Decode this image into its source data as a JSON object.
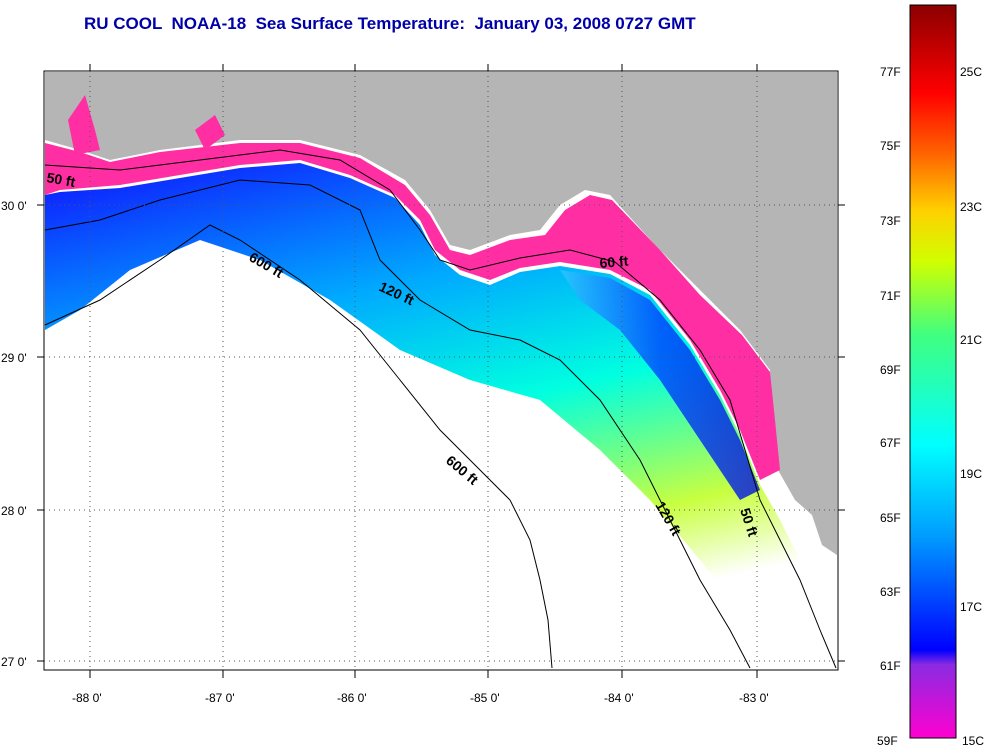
{
  "title": "RU COOL  NOAA-18  Sea Surface Temperature:  January 03, 2008 0727 GMT",
  "map": {
    "lat_labels": [
      "30 0'",
      "29 0'",
      "28 0'",
      "27 0'"
    ],
    "lon_labels": [
      "-88 0'",
      "-87 0'",
      "-86 0'",
      "-85 0'",
      "-84 0'",
      "-83 0'"
    ],
    "contour_labels": [
      "50 ft",
      "600 ft",
      "120 ft",
      "60 ft",
      "600 ft",
      "120 ft",
      "50 ft"
    ],
    "colors": {
      "land": "#b5b5b5",
      "water_missing": "#ffffff",
      "cold": "#ff2fa3",
      "cool": "#0018ff",
      "mid": "#00e0ff",
      "warm": "#e8ff30"
    }
  },
  "colorbar": {
    "fahrenheit_labels": [
      "77F",
      "75F",
      "73F",
      "71F",
      "69F",
      "67F",
      "65F",
      "63F",
      "61F",
      "59F"
    ],
    "celsius_labels": [
      "25C",
      "23C",
      "21C",
      "19C",
      "17C",
      "15C"
    ]
  }
}
